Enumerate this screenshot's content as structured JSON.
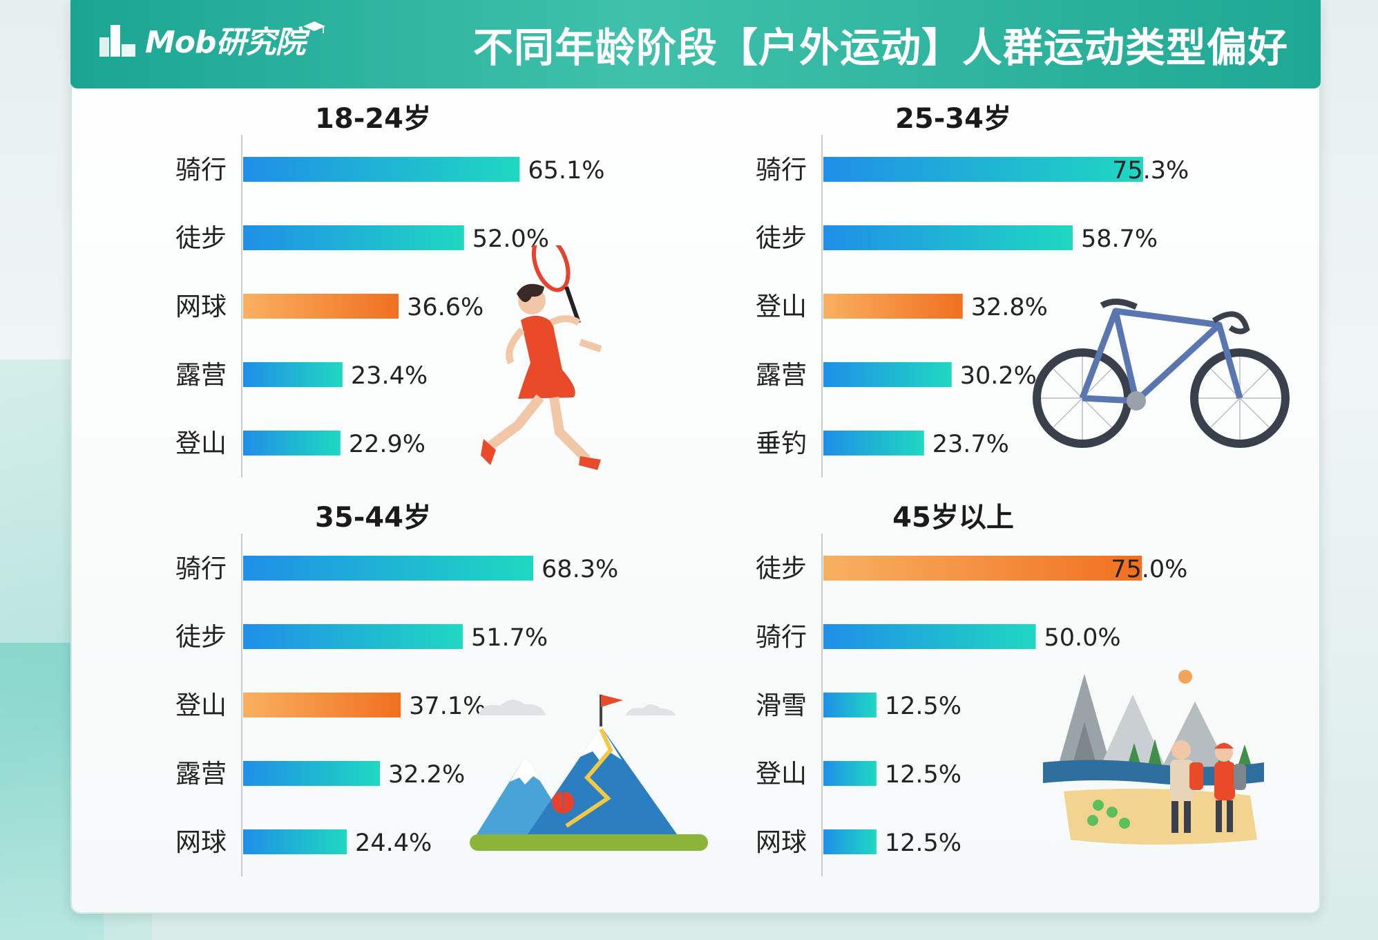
{
  "header": {
    "logo_text": "Mob研究院",
    "title": "不同年龄阶段【户外运动】人群运动类型偏好"
  },
  "colors": {
    "blue_start": "#1f8fe8",
    "teal_end": "#1fd8c1",
    "orange_start": "#f8b060",
    "orange_end": "#f07020",
    "header": "#23ab97"
  },
  "chart_data": [
    {
      "type": "bar",
      "orientation": "horizontal",
      "title": "18-24岁",
      "categories": [
        "骑行",
        "徒步",
        "网球",
        "露营",
        "登山"
      ],
      "values": [
        65.1,
        52.0,
        36.6,
        23.4,
        22.9
      ],
      "labels": [
        "65.1%",
        "52.0%",
        "36.6%",
        "23.4%",
        "22.9%"
      ],
      "highlight_index": 2,
      "illustration": "tennis-player-icon"
    },
    {
      "type": "bar",
      "orientation": "horizontal",
      "title": "25-34岁",
      "categories": [
        "骑行",
        "徒步",
        "登山",
        "露营",
        "垂钓"
      ],
      "values": [
        75.3,
        58.7,
        32.8,
        30.2,
        23.7
      ],
      "labels": [
        "75.3%",
        "58.7%",
        "32.8%",
        "30.2%",
        "23.7%"
      ],
      "highlight_index": 2,
      "illustration": "bicycle-icon"
    },
    {
      "type": "bar",
      "orientation": "horizontal",
      "title": "35-44岁",
      "categories": [
        "骑行",
        "徒步",
        "登山",
        "露营",
        "网球"
      ],
      "values": [
        68.3,
        51.7,
        37.1,
        32.2,
        24.4
      ],
      "labels": [
        "68.3%",
        "51.7%",
        "37.1%",
        "32.2%",
        "24.4%"
      ],
      "highlight_index": 2,
      "illustration": "mountain-flag-icon"
    },
    {
      "type": "bar",
      "orientation": "horizontal",
      "title": "45岁以上",
      "categories": [
        "徒步",
        "骑行",
        "滑雪",
        "登山",
        "网球"
      ],
      "values": [
        75.0,
        50.0,
        12.5,
        12.5,
        12.5
      ],
      "labels": [
        "75.0%",
        "50.0%",
        "12.5%",
        "12.5%",
        "12.5%"
      ],
      "highlight_index": 0,
      "illustration": "hikers-landscape-icon"
    }
  ]
}
